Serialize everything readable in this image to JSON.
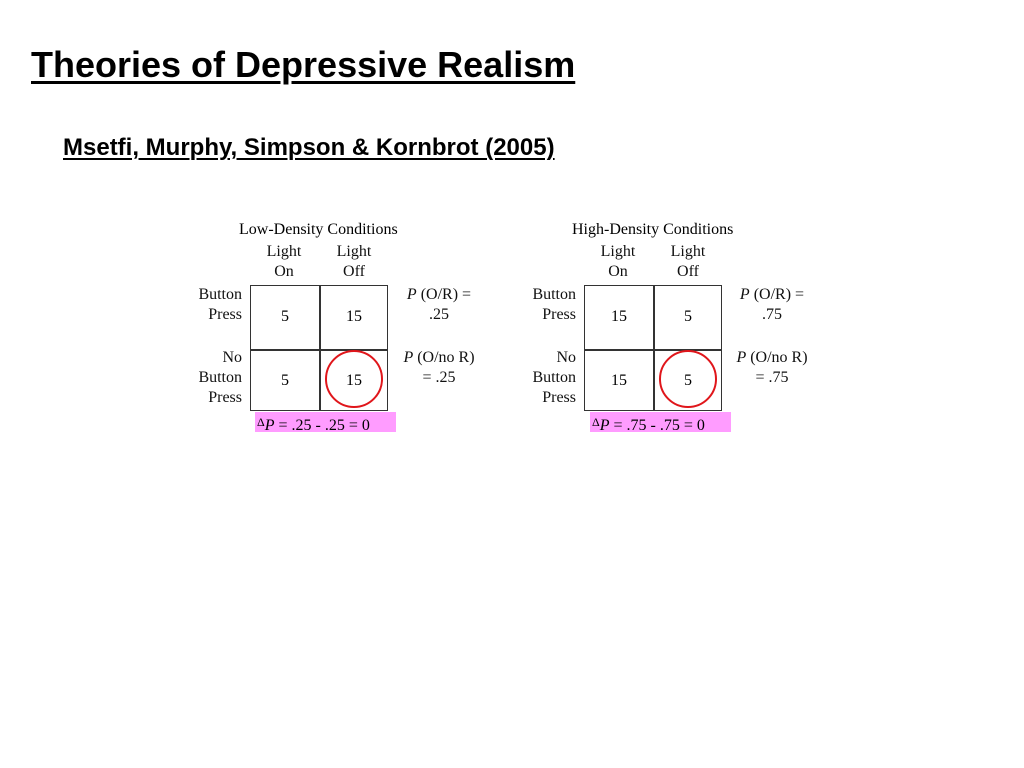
{
  "title": "Theories of Depressive Realism",
  "subtitle": "Msetfi, Murphy, Simpson & Kornbrot (2005)",
  "panels": [
    {
      "header": "Low-Density Conditions",
      "col_headers": [
        {
          "line1": "Light",
          "line2": "On"
        },
        {
          "line1": "Light",
          "line2": "Off"
        }
      ],
      "row_labels": [
        {
          "lines": [
            "Button",
            "Press"
          ]
        },
        {
          "lines": [
            "No",
            "Button",
            "Press"
          ]
        }
      ],
      "cells": [
        [
          "5",
          "15"
        ],
        [
          "5",
          "15"
        ]
      ],
      "stats": [
        {
          "italic": "P",
          "rest": " (O/R) =",
          "value": ".25"
        },
        {
          "italic": "P",
          "rest": " (O/no R)",
          "value": "= .25"
        }
      ],
      "delta": {
        "symbol": "Δ",
        "italic": "P",
        "rest": " = .25 - .25 =  0"
      },
      "circled_cell": "row 2, Light Off"
    },
    {
      "header": "High-Density Conditions",
      "col_headers": [
        {
          "line1": "Light",
          "line2": "On"
        },
        {
          "line1": "Light",
          "line2": "Off"
        }
      ],
      "row_labels": [
        {
          "lines": [
            "Button",
            "Press"
          ]
        },
        {
          "lines": [
            "No",
            "Button",
            "Press"
          ]
        }
      ],
      "cells": [
        [
          "15",
          "5"
        ],
        [
          "15",
          "5"
        ]
      ],
      "stats": [
        {
          "italic": "P",
          "rest": " (O/R) =",
          "value": ".75"
        },
        {
          "italic": "P",
          "rest": " (O/no R)",
          "value": "= .75"
        }
      ],
      "delta": {
        "symbol": "Δ",
        "italic": "P",
        "rest": " = .75 - .75 =  0"
      },
      "circled_cell": "row 2, Light Off"
    }
  ],
  "colors": {
    "highlight": "#ff9cff",
    "circle": "#e0161b",
    "grid_line": "#333333"
  }
}
